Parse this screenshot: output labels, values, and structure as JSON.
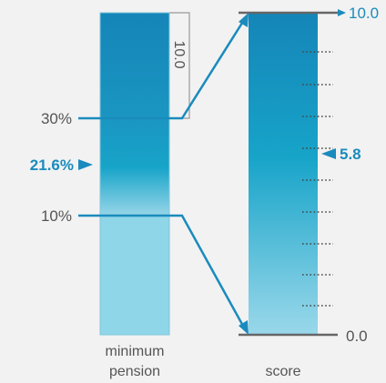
{
  "left_scale": {
    "name": "minimum pension",
    "name_lines": [
      "minimum",
      "pension"
    ],
    "marks": [
      {
        "label": "30%",
        "value": 30
      },
      {
        "label": "10%",
        "value": 10
      }
    ],
    "indicator": {
      "label": "21.6%",
      "value": 21.6
    },
    "bracket_label": "10.0"
  },
  "right_scale": {
    "name": "score",
    "max_label": "10.0",
    "min_label": "0.0",
    "min": 0,
    "max": 10,
    "indicator": {
      "label": "5.8",
      "value": 5.8
    }
  },
  "colors": {
    "accent": "#1a8bbd",
    "bar_dark": "#1585b8",
    "bar_mid": "#17a4c9",
    "bar_light": "#8fd2e6",
    "line": "#1a8bbd",
    "text": "#555555"
  }
}
